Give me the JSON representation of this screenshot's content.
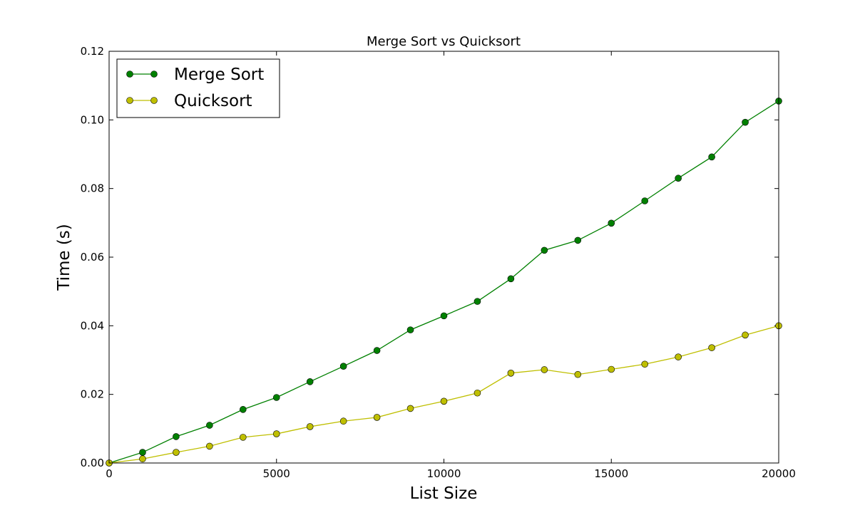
{
  "chart_data": {
    "type": "line",
    "title": "Merge Sort vs Quicksort",
    "xlabel": "List Size",
    "ylabel": "Time (s)",
    "xlim": [
      0,
      20000
    ],
    "ylim": [
      0,
      0.12
    ],
    "xticks": [
      0,
      5000,
      10000,
      15000,
      20000
    ],
    "xtick_labels": [
      "0",
      "5000",
      "10000",
      "15000",
      "20000"
    ],
    "yticks": [
      0,
      0.02,
      0.04,
      0.06,
      0.08,
      0.1,
      0.12
    ],
    "ytick_labels": [
      "0.00",
      "0.02",
      "0.04",
      "0.06",
      "0.08",
      "0.10",
      "0.12"
    ],
    "grid": false,
    "legend_position": "top-left",
    "x": [
      0,
      1000,
      2000,
      3000,
      4000,
      5000,
      6000,
      7000,
      8000,
      9000,
      10000,
      11000,
      12000,
      13000,
      14000,
      15000,
      16000,
      17000,
      18000,
      19000,
      20000
    ],
    "series": [
      {
        "name": "Merge Sort",
        "color": "#008000",
        "values": [
          0.0,
          0.0031,
          0.0077,
          0.011,
          0.0156,
          0.0191,
          0.0237,
          0.0282,
          0.0328,
          0.0388,
          0.0429,
          0.0471,
          0.0537,
          0.062,
          0.0649,
          0.0699,
          0.0764,
          0.083,
          0.0892,
          0.0993,
          0.1055
        ]
      },
      {
        "name": "Quicksort",
        "color": "#bfbf00",
        "values": [
          0.0,
          0.0012,
          0.0031,
          0.0049,
          0.0075,
          0.0085,
          0.0106,
          0.0122,
          0.0133,
          0.0159,
          0.018,
          0.0204,
          0.0262,
          0.0272,
          0.0258,
          0.0273,
          0.0288,
          0.0309,
          0.0336,
          0.0373,
          0.04
        ]
      }
    ]
  }
}
